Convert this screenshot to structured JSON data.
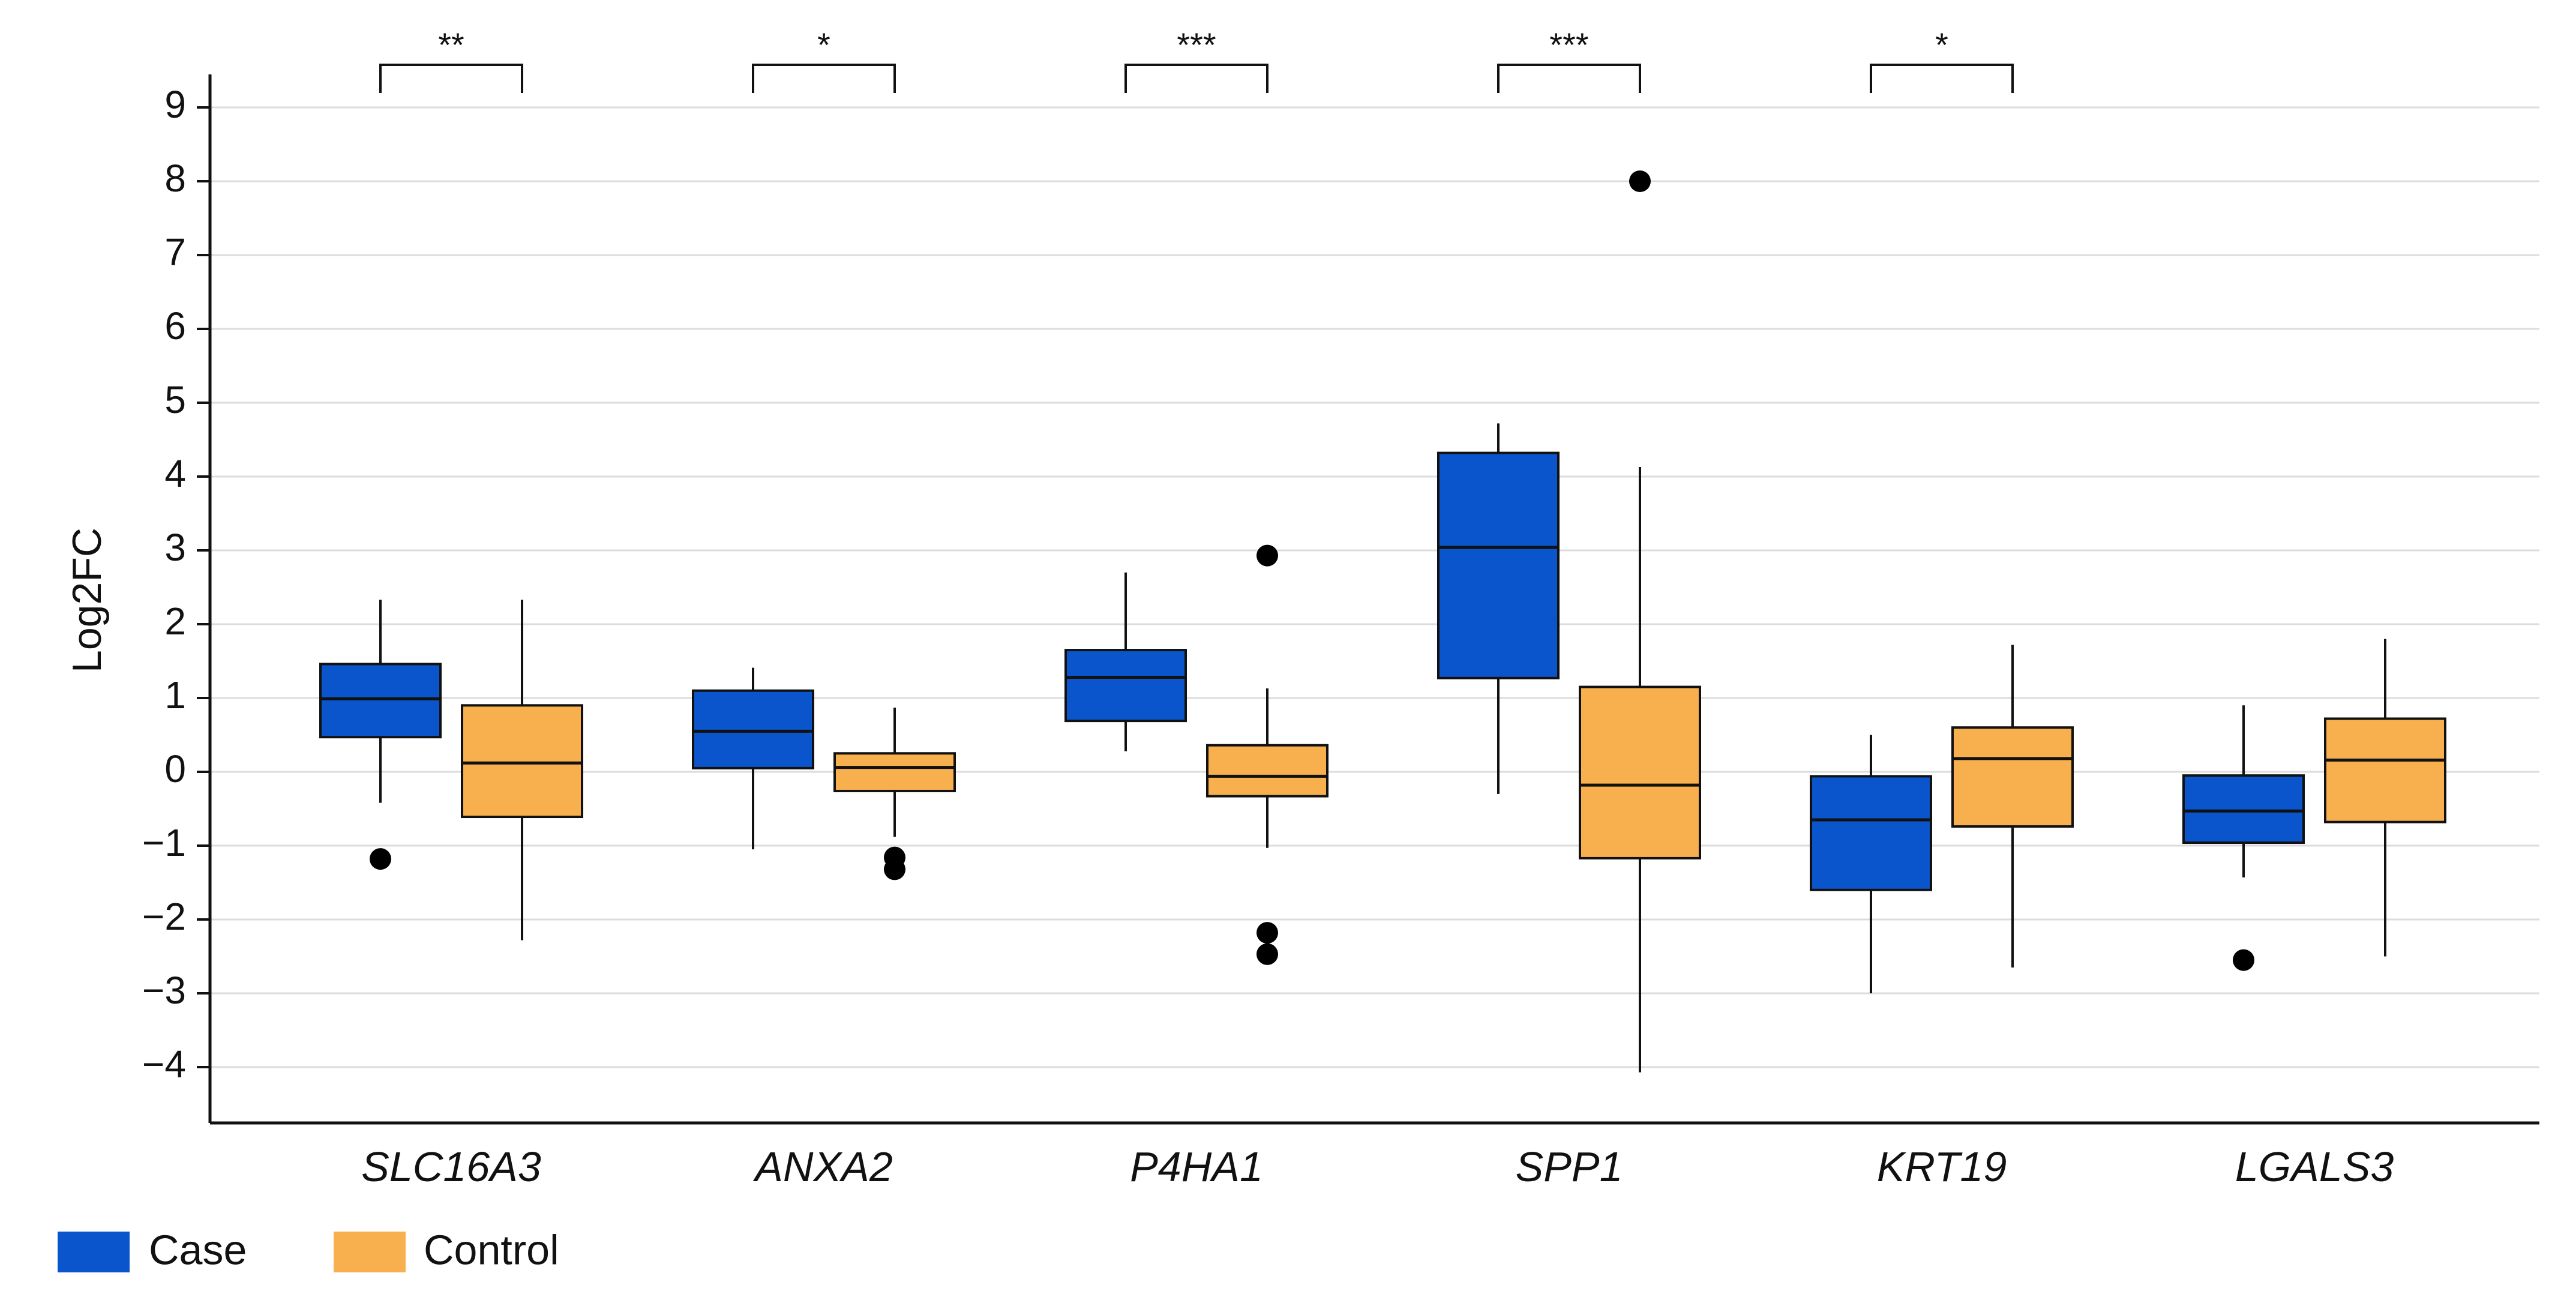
{
  "chart_data": {
    "type": "box",
    "title": "",
    "xlabel": "",
    "ylabel": "Log2FC",
    "ylim": [
      -4.7,
      9.45
    ],
    "yticks": [
      -4,
      -3,
      -2,
      -1,
      0,
      1,
      2,
      3,
      4,
      5,
      6,
      7,
      8,
      9
    ],
    "ytick_labels": [
      "−4",
      "−3",
      "−2",
      "−1",
      "0",
      "1",
      "2",
      "3",
      "4",
      "5",
      "6",
      "7",
      "8",
      "9"
    ],
    "grid": true,
    "legend_position": "bottom-left",
    "categories": [
      "SLC16A3",
      "ANXA2",
      "P4HA1",
      "SPP1",
      "KRT19",
      "LGALS3"
    ],
    "series": [
      {
        "name": "Case",
        "color": "#0b55cc",
        "boxes": [
          {
            "whisker_low": -0.42,
            "q1": 0.47,
            "median": 0.99,
            "q3": 1.46,
            "whisker_high": 2.33,
            "outliers": [
              -1.18
            ]
          },
          {
            "whisker_low": -1.05,
            "q1": 0.05,
            "median": 0.55,
            "q3": 1.1,
            "whisker_high": 1.41,
            "outliers": []
          },
          {
            "whisker_low": 0.28,
            "q1": 0.69,
            "median": 1.28,
            "q3": 1.65,
            "whisker_high": 2.7,
            "outliers": []
          },
          {
            "whisker_low": -0.3,
            "q1": 1.27,
            "median": 3.04,
            "q3": 4.32,
            "whisker_high": 4.72,
            "outliers": []
          },
          {
            "whisker_low": -3.0,
            "q1": -1.6,
            "median": -0.65,
            "q3": -0.06,
            "whisker_high": 0.5,
            "outliers": []
          },
          {
            "whisker_low": -1.43,
            "q1": -0.96,
            "median": -0.53,
            "q3": -0.05,
            "whisker_high": 0.9,
            "outliers": [
              -2.55
            ]
          }
        ]
      },
      {
        "name": "Control",
        "color": "#f8b04f",
        "boxes": [
          {
            "whisker_low": -2.28,
            "q1": -0.61,
            "median": 0.12,
            "q3": 0.9,
            "whisker_high": 2.33,
            "outliers": []
          },
          {
            "whisker_low": -0.88,
            "q1": -0.26,
            "median": 0.06,
            "q3": 0.25,
            "whisker_high": 0.87,
            "outliers": [
              -1.16,
              -1.32
            ]
          },
          {
            "whisker_low": -1.03,
            "q1": -0.33,
            "median": -0.06,
            "q3": 0.36,
            "whisker_high": 1.13,
            "outliers": [
              2.93,
              -2.18,
              -2.47
            ]
          },
          {
            "whisker_low": -4.07,
            "q1": -1.17,
            "median": -0.18,
            "q3": 1.15,
            "whisker_high": 4.13,
            "outliers": [
              8.0
            ]
          },
          {
            "whisker_low": -2.65,
            "q1": -0.74,
            "median": 0.18,
            "q3": 0.6,
            "whisker_high": 1.72,
            "outliers": []
          },
          {
            "whisker_low": -2.5,
            "q1": -0.68,
            "median": 0.16,
            "q3": 0.72,
            "whisker_high": 1.8,
            "outliers": []
          }
        ]
      }
    ],
    "significance": [
      {
        "category": "SLC16A3",
        "label": "**"
      },
      {
        "category": "ANXA2",
        "label": "*"
      },
      {
        "category": "P4HA1",
        "label": "***"
      },
      {
        "category": "SPP1",
        "label": "***"
      },
      {
        "category": "KRT19",
        "label": "*"
      }
    ],
    "legend": [
      {
        "label": "Case",
        "color": "#0b55cc"
      },
      {
        "label": "Control",
        "color": "#f8b04f"
      }
    ]
  }
}
